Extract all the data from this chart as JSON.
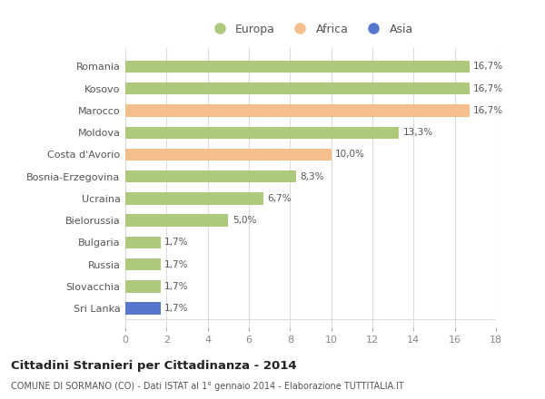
{
  "categories": [
    "Romania",
    "Kosovo",
    "Marocco",
    "Moldova",
    "Costa d'Avorio",
    "Bosnia-Erzegovina",
    "Ucraina",
    "Bielorussia",
    "Bulgaria",
    "Russia",
    "Slovacchia",
    "Sri Lanka"
  ],
  "values": [
    16.7,
    16.7,
    16.7,
    13.3,
    10.0,
    8.3,
    6.7,
    5.0,
    1.7,
    1.7,
    1.7,
    1.7
  ],
  "labels": [
    "16,7%",
    "16,7%",
    "16,7%",
    "13,3%",
    "10,0%",
    "8,3%",
    "6,7%",
    "5,0%",
    "1,7%",
    "1,7%",
    "1,7%",
    "1,7%"
  ],
  "continent": [
    "Europa",
    "Europa",
    "Africa",
    "Europa",
    "Africa",
    "Europa",
    "Europa",
    "Europa",
    "Europa",
    "Europa",
    "Europa",
    "Asia"
  ],
  "colors": {
    "Europa": "#adc97e",
    "Africa": "#f5be8d",
    "Asia": "#5577cc"
  },
  "title": "Cittadini Stranieri per Cittadinanza - 2014",
  "subtitle": "COMUNE DI SORMANO (CO) - Dati ISTAT al 1° gennaio 2014 - Elaborazione TUTTITALIA.IT",
  "xlim": [
    0,
    18
  ],
  "xticks": [
    0,
    2,
    4,
    6,
    8,
    10,
    12,
    14,
    16,
    18
  ],
  "background_color": "#ffffff",
  "grid_color": "#dddddd"
}
